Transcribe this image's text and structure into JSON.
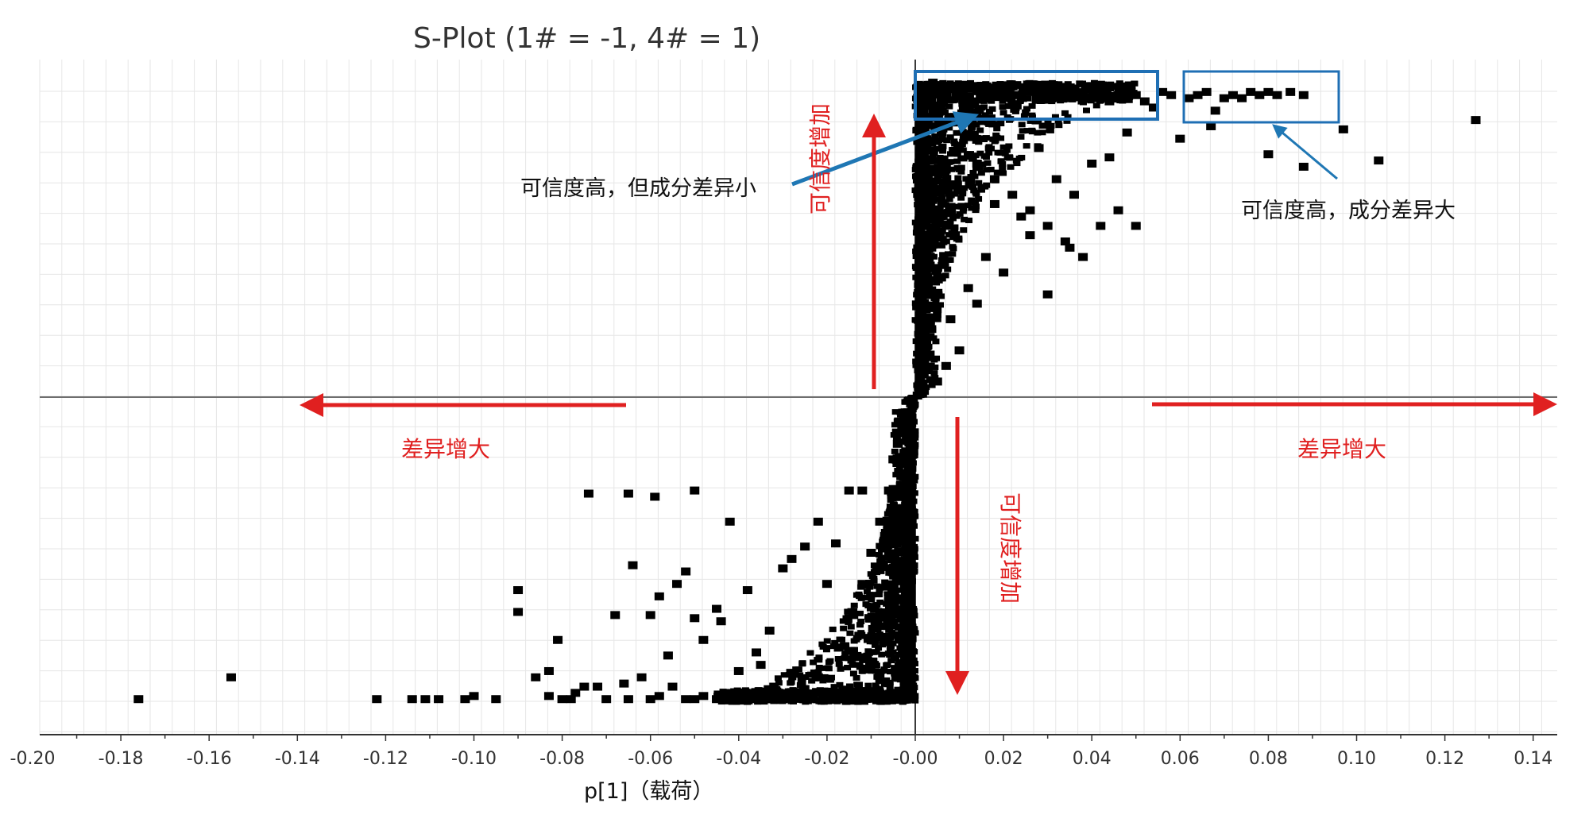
{
  "chart_data": {
    "type": "scatter",
    "title": "S-Plot (1# = -1, 4# = 1)",
    "xlabel": "p[1]（载荷）",
    "ylabel": "",
    "xlim": [
      -0.2,
      0.145
    ],
    "ylim": [
      -1.08,
      1.08
    ],
    "x_ticks": [
      "-0.20",
      "-0.18",
      "-0.16",
      "-0.14",
      "-0.12",
      "-0.10",
      "-0.08",
      "-0.06",
      "-0.04",
      "-0.02",
      "-0.00",
      "0.02",
      "0.04",
      "0.06",
      "0.08",
      "0.10",
      "0.12",
      "0.14"
    ],
    "x_tick_values": [
      -0.2,
      -0.18,
      -0.16,
      -0.14,
      -0.12,
      -0.1,
      -0.08,
      -0.06,
      -0.04,
      -0.02,
      0,
      0.02,
      0.04,
      0.06,
      0.08,
      0.1,
      0.12,
      0.14
    ],
    "grid": true,
    "series": [
      {
        "color": "#000000",
        "x": [
          0.001,
          0.002,
          0.003,
          0.004,
          0.006,
          0.008,
          0.01,
          0.012,
          0.015,
          0.018,
          0.02,
          0.022,
          0.025,
          0.028,
          0.03,
          0.032,
          0.035,
          0.038,
          0.04,
          0.042,
          0.044,
          0.046,
          0.048,
          0.05,
          0.052,
          0.054,
          0.056,
          0.058,
          0.062,
          0.064,
          0.066,
          0.068,
          0.07,
          0.072,
          0.074,
          0.076,
          0.078,
          0.08,
          0.082,
          0.085,
          0.088,
          0.067,
          0.08,
          0.097,
          0.088,
          0.06,
          0.105,
          0.127,
          0.003,
          0.006,
          0.01,
          0.014,
          0.018,
          0.022,
          0.026,
          0.03,
          0.034,
          0.038,
          0.042,
          0.046,
          0.05,
          0.04,
          0.032,
          0.028,
          0.048,
          0.044,
          0.036,
          0.024,
          0.016,
          0.012,
          0.008,
          0.02,
          0.03,
          0.035,
          0.026,
          0.018,
          0.014,
          0.01,
          0.007,
          0.005,
          0.002,
          0.001,
          0.0005,
          -0.0005,
          -0.001,
          -0.002,
          -0.003,
          -0.004,
          -0.005,
          -0.006,
          -0.008,
          -0.01,
          -0.012,
          -0.014,
          -0.016,
          -0.018,
          -0.02,
          -0.022,
          -0.025,
          -0.028,
          -0.03,
          -0.032,
          -0.035,
          -0.038,
          -0.04,
          -0.042,
          -0.045,
          -0.048,
          -0.05,
          -0.052,
          -0.055,
          -0.058,
          -0.06,
          -0.065,
          -0.07,
          -0.075,
          -0.078,
          -0.08,
          -0.083,
          -0.09,
          -0.095,
          -0.1,
          -0.108,
          -0.111,
          -0.114,
          -0.122,
          -0.155,
          -0.176,
          -0.05,
          -0.065,
          -0.059,
          -0.064,
          -0.054,
          -0.074,
          -0.09,
          -0.045,
          -0.068,
          -0.083,
          -0.035,
          -0.04,
          -0.028,
          -0.025,
          -0.06,
          -0.058,
          -0.05,
          -0.052,
          -0.042,
          -0.038,
          -0.022,
          -0.018,
          -0.015,
          -0.012,
          -0.02,
          -0.03,
          -0.033,
          -0.036,
          -0.044,
          -0.048,
          -0.056,
          -0.062,
          -0.066,
          -0.072,
          -0.077,
          -0.086,
          -0.081,
          -0.102
        ],
        "y": [
          0.98,
          1.0,
          0.99,
          1.01,
          0.99,
          1.0,
          0.98,
          0.99,
          1.0,
          0.98,
          0.99,
          0.97,
          0.98,
          0.99,
          0.97,
          0.98,
          0.96,
          0.97,
          0.96,
          0.98,
          0.95,
          0.97,
          0.96,
          0.97,
          0.95,
          0.93,
          0.98,
          0.97,
          0.96,
          0.97,
          0.98,
          0.92,
          0.96,
          0.97,
          0.96,
          0.98,
          0.97,
          0.98,
          0.97,
          0.98,
          0.97,
          0.87,
          0.78,
          0.86,
          0.74,
          0.83,
          0.76,
          0.89,
          0.9,
          0.85,
          0.8,
          0.75,
          0.7,
          0.65,
          0.6,
          0.55,
          0.5,
          0.45,
          0.55,
          0.6,
          0.55,
          0.75,
          0.7,
          0.8,
          0.85,
          0.77,
          0.65,
          0.58,
          0.45,
          0.35,
          0.25,
          0.4,
          0.33,
          0.48,
          0.52,
          0.62,
          0.3,
          0.15,
          0.1,
          0.05,
          0.02,
          0.01,
          0.005,
          -0.005,
          -0.02,
          -0.05,
          -0.1,
          -0.15,
          -0.2,
          -0.3,
          -0.4,
          -0.5,
          -0.6,
          -0.7,
          -0.8,
          -0.95,
          -0.97,
          -0.9,
          -0.97,
          -0.95,
          -0.97,
          -0.93,
          -0.97,
          -0.95,
          -0.96,
          -0.96,
          -0.97,
          -0.96,
          -0.97,
          -0.97,
          -0.93,
          -0.96,
          -0.97,
          -0.97,
          -0.97,
          -0.93,
          -0.97,
          -0.97,
          -0.96,
          -0.62,
          -0.97,
          -0.96,
          -0.97,
          -0.97,
          -0.97,
          -0.97,
          -0.9,
          -0.97,
          -0.3,
          -0.31,
          -0.32,
          -0.54,
          -0.6,
          -0.31,
          -0.69,
          -0.68,
          -0.7,
          -0.88,
          -0.86,
          -0.88,
          -0.52,
          -0.48,
          -0.7,
          -0.64,
          -0.71,
          -0.56,
          -0.4,
          -0.62,
          -0.4,
          -0.47,
          -0.3,
          -0.3,
          -0.6,
          -0.55,
          -0.75,
          -0.82,
          -0.72,
          -0.78,
          -0.83,
          -0.9,
          -0.92,
          -0.93,
          -0.95,
          -0.9,
          -0.78,
          -0.97
        ]
      }
    ],
    "annotations": [
      {
        "text": "可信度高，但成分差异小"
      },
      {
        "text": "可信度高，成分差异大"
      },
      {
        "text": "可信度增加"
      },
      {
        "text": "可信度增加"
      },
      {
        "text": "差异增大"
      },
      {
        "text": "差异增大"
      }
    ]
  },
  "colors": {
    "arrow_red": "#e02020",
    "arrow_blue": "#1f77b4",
    "box_blue": "#1f6fb4",
    "point": "#000000",
    "grid": "#e6e6e6"
  }
}
